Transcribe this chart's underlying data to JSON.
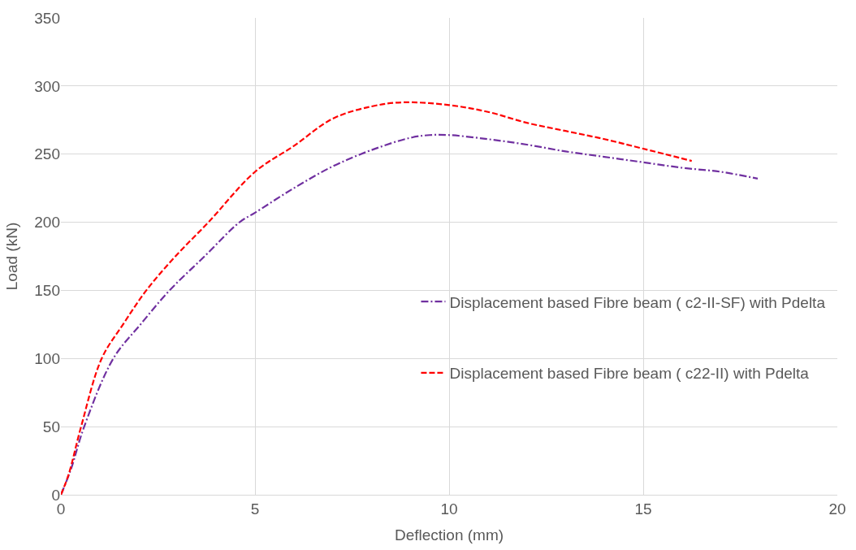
{
  "chart_data": {
    "type": "line",
    "xlabel": "Deflection (mm)",
    "ylabel": "Load (kN)",
    "xlim": [
      0,
      20
    ],
    "xticks": [
      0,
      5,
      10,
      15,
      20
    ],
    "ylim": [
      0,
      350
    ],
    "yticks": [
      0,
      50,
      100,
      150,
      200,
      250,
      300,
      350
    ],
    "grid": true,
    "legend": "right",
    "marker": "none",
    "series": [
      {
        "name": "Displacement based Fibre beam ( c2-II-SF) with Pdelta",
        "color": "#7030a0",
        "line_style": "dashdot",
        "x": [
          0,
          0.25,
          0.6,
          1.35,
          2.05,
          2.8,
          3.7,
          4.6,
          5,
          6,
          7,
          8,
          9,
          9.5,
          10,
          11,
          12,
          13,
          14,
          15,
          16,
          17,
          17.95
        ],
        "values": [
          0,
          18,
          50,
          100,
          125,
          150,
          175,
          200,
          207,
          225,
          241,
          253,
          262,
          264,
          264,
          261,
          257,
          252,
          248,
          244,
          240,
          237,
          232
        ]
      },
      {
        "name": "Displacement based Fibre beam ( c22-II) with Pdelta",
        "color": "#ff0000",
        "line_style": "dashed",
        "x": [
          0,
          0.2,
          0.52,
          1.05,
          1.6,
          2.2,
          2.95,
          3.8,
          5,
          6,
          7,
          8,
          8.8,
          10,
          11,
          12,
          13,
          14,
          15,
          16.25
        ],
        "values": [
          0,
          15,
          50,
          100,
          125,
          150,
          175,
          200,
          237,
          256,
          276,
          285,
          288,
          286,
          281,
          273,
          267,
          261,
          254,
          245
        ]
      }
    ]
  }
}
